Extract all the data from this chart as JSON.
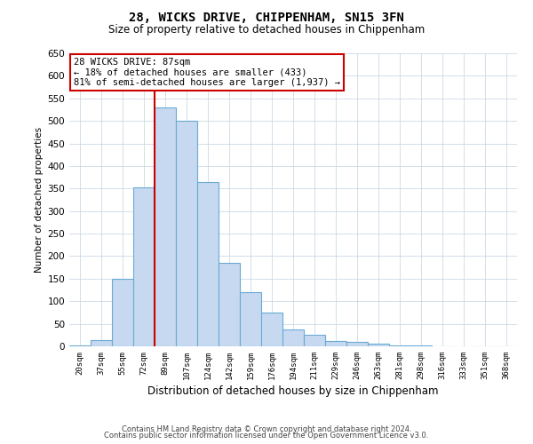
{
  "title1": "28, WICKS DRIVE, CHIPPENHAM, SN15 3FN",
  "title2": "Size of property relative to detached houses in Chippenham",
  "xlabel": "Distribution of detached houses by size in Chippenham",
  "ylabel": "Number of detached properties",
  "categories": [
    "20sqm",
    "37sqm",
    "55sqm",
    "72sqm",
    "89sqm",
    "107sqm",
    "124sqm",
    "142sqm",
    "159sqm",
    "176sqm",
    "194sqm",
    "211sqm",
    "229sqm",
    "246sqm",
    "263sqm",
    "281sqm",
    "298sqm",
    "316sqm",
    "333sqm",
    "351sqm",
    "368sqm"
  ],
  "bar_values": [
    2,
    13,
    150,
    353,
    530,
    500,
    365,
    185,
    120,
    75,
    38,
    25,
    12,
    10,
    5,
    2,
    1,
    0,
    0,
    0,
    0
  ],
  "bar_color": "#c6d9f0",
  "bar_edge_color": "#6aaad4",
  "red_line_index": 4,
  "red_line_color": "#cc0000",
  "ylim": [
    0,
    650
  ],
  "yticks": [
    0,
    50,
    100,
    150,
    200,
    250,
    300,
    350,
    400,
    450,
    500,
    550,
    600,
    650
  ],
  "annotation_text": "28 WICKS DRIVE: 87sqm\n← 18% of detached houses are smaller (433)\n81% of semi-detached houses are larger (1,937) →",
  "annotation_box_color": "#ffffff",
  "annotation_box_edge": "#cc0000",
  "footer1": "Contains HM Land Registry data © Crown copyright and database right 2024.",
  "footer2": "Contains public sector information licensed under the Open Government Licence v3.0.",
  "bg_color": "#ffffff",
  "grid_color": "#ccd9e8"
}
